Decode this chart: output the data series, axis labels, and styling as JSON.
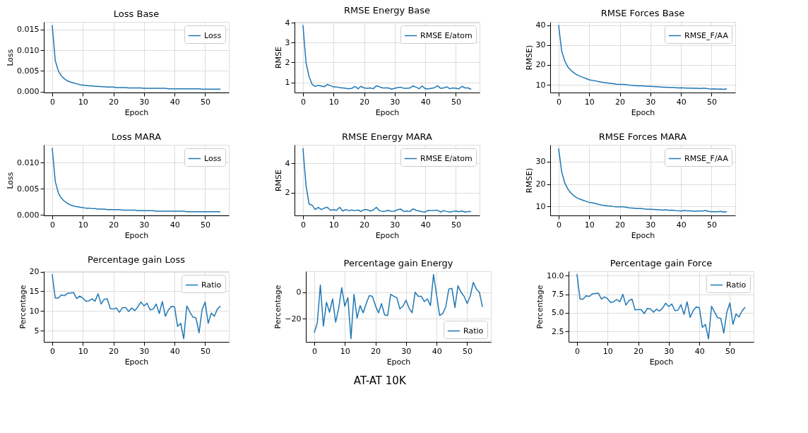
{
  "chart_data": [
    {
      "type": "line",
      "title": "Loss Base",
      "xlabel": "Epoch",
      "ylabel": "Loss",
      "x": [
        0,
        1,
        2,
        3,
        4,
        5,
        6,
        7,
        8,
        9,
        10,
        11,
        12,
        13,
        14,
        15,
        16,
        17,
        18,
        19,
        20,
        21,
        22,
        23,
        24,
        25,
        26,
        27,
        28,
        29,
        30,
        31,
        32,
        33,
        34,
        35,
        36,
        37,
        38,
        39,
        40,
        41,
        42,
        43,
        44,
        45,
        46,
        47,
        48,
        49,
        50,
        51,
        52,
        53,
        54,
        55
      ],
      "xlim": [
        -2.75,
        57.75
      ],
      "xticks": [
        0,
        10,
        20,
        30,
        40,
        50
      ],
      "ylim": [
        -0.0002,
        0.0168
      ],
      "yticks": [
        {
          "value": 0,
          "label": "0.000"
        },
        {
          "value": 0.005,
          "label": "0.005"
        },
        {
          "value": 0.01,
          "label": "0.010"
        },
        {
          "value": 0.015,
          "label": "0.015"
        }
      ],
      "grid": true,
      "legend": "top right",
      "series": [
        {
          "name": "Loss",
          "color": "#1f77b4",
          "values": [
            0.016,
            0.0075,
            0.005,
            0.0038,
            0.0031,
            0.0026,
            0.0023,
            0.0021,
            0.0019,
            0.0017,
            0.0016,
            0.0015,
            0.0014,
            0.0014,
            0.0013,
            0.0013,
            0.0012,
            0.0012,
            0.0011,
            0.0011,
            0.0011,
            0.001,
            0.001,
            0.001,
            0.001,
            0.0009,
            0.0009,
            0.0009,
            0.0009,
            0.0009,
            0.0008,
            0.0008,
            0.0008,
            0.0008,
            0.0008,
            0.0008,
            0.0008,
            0.0008,
            0.0007,
            0.0007,
            0.0007,
            0.0007,
            0.0007,
            0.0007,
            0.0007,
            0.0007,
            0.0007,
            0.0007,
            0.0007,
            0.0006,
            0.0006,
            0.0006,
            0.0006,
            0.0006,
            0.0006,
            0.0006
          ]
        }
      ]
    },
    {
      "type": "line",
      "title": "RMSE Energy Base",
      "xlabel": "Epoch",
      "ylabel": "RMSE",
      "x": [
        0,
        1,
        2,
        3,
        4,
        5,
        6,
        7,
        8,
        9,
        10,
        11,
        12,
        13,
        14,
        15,
        16,
        17,
        18,
        19,
        20,
        21,
        22,
        23,
        24,
        25,
        26,
        27,
        28,
        29,
        30,
        31,
        32,
        33,
        34,
        35,
        36,
        37,
        38,
        39,
        40,
        41,
        42,
        43,
        44,
        45,
        46,
        47,
        48,
        49,
        50,
        51,
        52,
        53,
        54,
        55
      ],
      "xlim": [
        -2.75,
        57.75
      ],
      "xticks": [
        0,
        10,
        20,
        30,
        40,
        50
      ],
      "ylim": [
        0.49,
        4.04
      ],
      "yticks": [
        1,
        2,
        3,
        4
      ],
      "grid": true,
      "legend": "top right",
      "series": [
        {
          "name": "RMSE E/atom",
          "color": "#1f77b4",
          "values": [
            3.88,
            2.0,
            1.3,
            0.9,
            0.8,
            0.85,
            0.82,
            0.78,
            0.9,
            0.83,
            0.77,
            0.77,
            0.74,
            0.72,
            0.7,
            0.68,
            0.7,
            0.8,
            0.68,
            0.8,
            0.72,
            0.7,
            0.72,
            0.68,
            0.83,
            0.78,
            0.72,
            0.72,
            0.72,
            0.66,
            0.7,
            0.74,
            0.76,
            0.7,
            0.7,
            0.72,
            0.82,
            0.76,
            0.68,
            0.82,
            0.68,
            0.68,
            0.7,
            0.73,
            0.83,
            0.7,
            0.72,
            0.78,
            0.68,
            0.72,
            0.7,
            0.68,
            0.8,
            0.72,
            0.72,
            0.65
          ]
        }
      ]
    },
    {
      "type": "line",
      "title": "RMSE Forces Base",
      "xlabel": "Epoch",
      "ylabel": "RMSE)",
      "x": [
        0,
        1,
        2,
        3,
        4,
        5,
        6,
        7,
        8,
        9,
        10,
        11,
        12,
        13,
        14,
        15,
        16,
        17,
        18,
        19,
        20,
        21,
        22,
        23,
        24,
        25,
        26,
        27,
        28,
        29,
        30,
        31,
        32,
        33,
        34,
        35,
        36,
        37,
        38,
        39,
        40,
        41,
        42,
        43,
        44,
        45,
        46,
        47,
        48,
        49,
        50,
        51,
        52,
        53,
        54,
        55
      ],
      "xlim": [
        -2.75,
        57.75
      ],
      "xticks": [
        0,
        10,
        20,
        30,
        40,
        50
      ],
      "ylim": [
        6.1,
        41.6
      ],
      "yticks": [
        10,
        20,
        30,
        40
      ],
      "grid": true,
      "legend": "top right",
      "series": [
        {
          "name": "RMSE_F/AA",
          "color": "#1f77b4",
          "values": [
            40,
            27,
            22,
            19,
            17.3,
            16,
            15,
            14.3,
            13.7,
            13.1,
            12.5,
            12.2,
            12,
            11.6,
            11.3,
            11.1,
            10.9,
            10.7,
            10.5,
            10.3,
            10.2,
            10.2,
            10.1,
            9.8,
            9.7,
            9.6,
            9.5,
            9.5,
            9.4,
            9.2,
            9.2,
            9.1,
            9.0,
            8.9,
            8.8,
            8.8,
            8.7,
            8.7,
            8.6,
            8.4,
            8.5,
            8.4,
            8.3,
            8.3,
            8.2,
            8.3,
            8.1,
            8.2,
            8.2,
            8.0,
            7.9,
            8.0,
            7.8,
            7.9,
            7.7,
            8.0
          ]
        }
      ]
    },
    {
      "type": "line",
      "title": "Loss MARA",
      "xlabel": "Epoch",
      "ylabel": "Loss",
      "x": [
        0,
        1,
        2,
        3,
        4,
        5,
        6,
        7,
        8,
        9,
        10,
        11,
        12,
        13,
        14,
        15,
        16,
        17,
        18,
        19,
        20,
        21,
        22,
        23,
        24,
        25,
        26,
        27,
        28,
        29,
        30,
        31,
        32,
        33,
        34,
        35,
        36,
        37,
        38,
        39,
        40,
        41,
        42,
        43,
        44,
        45,
        46,
        47,
        48,
        49,
        50,
        51,
        52,
        53,
        54,
        55
      ],
      "xlim": [
        -2.75,
        57.75
      ],
      "xticks": [
        0,
        10,
        20,
        30,
        40,
        50
      ],
      "ylim": [
        -0.0001,
        0.0134
      ],
      "yticks": [
        {
          "value": 0,
          "label": "0.000"
        },
        {
          "value": 0.005,
          "label": "0.005"
        },
        {
          "value": 0.01,
          "label": "0.010"
        }
      ],
      "grid": true,
      "legend": "top right",
      "series": [
        {
          "name": "Loss",
          "color": "#1f77b4",
          "values": [
            0.0128,
            0.0064,
            0.0042,
            0.0032,
            0.0026,
            0.0022,
            0.0019,
            0.0017,
            0.0016,
            0.0015,
            0.0014,
            0.0013,
            0.0013,
            0.0012,
            0.0012,
            0.0011,
            0.0011,
            0.0011,
            0.001,
            0.001,
            0.001,
            0.001,
            0.001,
            0.0009,
            0.0009,
            0.0009,
            0.0009,
            0.0009,
            0.0008,
            0.0008,
            0.0008,
            0.0008,
            0.0008,
            0.0008,
            0.0007,
            0.0007,
            0.0007,
            0.0007,
            0.0007,
            0.0007,
            0.0007,
            0.0007,
            0.0007,
            0.0007,
            0.0006,
            0.0006,
            0.0006,
            0.0006,
            0.0006,
            0.0006,
            0.0006,
            0.0006,
            0.0006,
            0.0006,
            0.0006,
            0.0006
          ]
        }
      ]
    },
    {
      "type": "line",
      "title": "RMSE Energy MARA",
      "xlabel": "Epoch",
      "ylabel": "RMSE",
      "x": [
        0,
        1,
        2,
        3,
        4,
        5,
        6,
        7,
        8,
        9,
        10,
        11,
        12,
        13,
        14,
        15,
        16,
        17,
        18,
        19,
        20,
        21,
        22,
        23,
        24,
        25,
        26,
        27,
        28,
        29,
        30,
        31,
        32,
        33,
        34,
        35,
        36,
        37,
        38,
        39,
        40,
        41,
        42,
        43,
        44,
        45,
        46,
        47,
        48,
        49,
        50,
        51,
        52,
        53,
        54,
        55
      ],
      "xlim": [
        -2.75,
        57.75
      ],
      "xticks": [
        0,
        10,
        20,
        30,
        40,
        50
      ],
      "ylim": [
        0.45,
        5.25
      ],
      "yticks": [
        2,
        4
      ],
      "grid": true,
      "legend": "top right",
      "series": [
        {
          "name": "RMSE E/atom",
          "color": "#1f77b4",
          "values": [
            5.02,
            2.5,
            1.22,
            1.15,
            0.85,
            1.0,
            0.85,
            0.95,
            1.0,
            0.8,
            0.85,
            0.8,
            1.0,
            0.75,
            0.85,
            0.78,
            0.82,
            0.78,
            0.82,
            0.72,
            0.85,
            0.85,
            0.75,
            0.82,
            1.0,
            0.78,
            0.72,
            0.75,
            0.8,
            0.72,
            0.75,
            0.85,
            0.88,
            0.72,
            0.75,
            0.72,
            0.9,
            0.8,
            0.75,
            0.7,
            0.68,
            0.8,
            0.78,
            0.8,
            0.8,
            0.68,
            0.78,
            0.72,
            0.68,
            0.72,
            0.75,
            0.7,
            0.75,
            0.68,
            0.72,
            0.72
          ]
        }
      ]
    },
    {
      "type": "line",
      "title": "RMSE Forces MARA",
      "xlabel": "Epoch",
      "ylabel": "RMSE)",
      "x": [
        0,
        1,
        2,
        3,
        4,
        5,
        6,
        7,
        8,
        9,
        10,
        11,
        12,
        13,
        14,
        15,
        16,
        17,
        18,
        19,
        20,
        21,
        22,
        23,
        24,
        25,
        26,
        27,
        28,
        29,
        30,
        31,
        32,
        33,
        34,
        35,
        36,
        37,
        38,
        39,
        40,
        41,
        42,
        43,
        44,
        45,
        46,
        47,
        48,
        49,
        50,
        51,
        52,
        53,
        54,
        55
      ],
      "xlim": [
        -2.75,
        57.75
      ],
      "xticks": [
        0,
        10,
        20,
        30,
        40,
        50
      ],
      "ylim": [
        5.9,
        37.6
      ],
      "yticks": [
        10,
        20,
        30
      ],
      "grid": true,
      "legend": "top right",
      "series": [
        {
          "name": "RMSE_F/AA",
          "color": "#1f77b4",
          "values": [
            36,
            25.5,
            20.5,
            17.8,
            16,
            14.7,
            13.8,
            13.2,
            12.7,
            12.2,
            11.8,
            11.6,
            11.3,
            10.9,
            10.6,
            10.4,
            10.2,
            10.1,
            9.9,
            9.8,
            9.8,
            9.8,
            9.6,
            9.3,
            9.2,
            9.1,
            9.0,
            9.0,
            8.8,
            8.7,
            8.7,
            8.6,
            8.5,
            8.4,
            8.3,
            8.4,
            8.2,
            8.3,
            8.1,
            8.0,
            7.9,
            8.1,
            8.0,
            8.0,
            7.8,
            7.8,
            7.9,
            7.9,
            8.1,
            7.7,
            7.6,
            7.6,
            7.6,
            7.7,
            7.4,
            7.6
          ]
        }
      ]
    },
    {
      "type": "line",
      "title": "Percentage gain Loss",
      "xlabel": "Epoch",
      "ylabel": "Percentage",
      "x": [
        0,
        1,
        2,
        3,
        4,
        5,
        6,
        7,
        8,
        9,
        10,
        11,
        12,
        13,
        14,
        15,
        16,
        17,
        18,
        19,
        20,
        21,
        22,
        23,
        24,
        25,
        26,
        27,
        28,
        29,
        30,
        31,
        32,
        33,
        34,
        35,
        36,
        37,
        38,
        39,
        40,
        41,
        42,
        43,
        44,
        45,
        46,
        47,
        48,
        49,
        50,
        51,
        52,
        53,
        54,
        55
      ],
      "xlim": [
        -2.75,
        57.75
      ],
      "xticks": [
        0,
        10,
        20,
        30,
        40,
        50
      ],
      "ylim": [
        2.2,
        20.1
      ],
      "yticks": [
        5,
        10,
        15,
        20
      ],
      "grid": true,
      "legend": "top right",
      "series": [
        {
          "name": "Ratio",
          "color": "#1f77b4",
          "values": [
            19.3,
            13.3,
            13.3,
            14.1,
            13.9,
            14.5,
            14.6,
            14.7,
            13.2,
            13.8,
            13.3,
            12.5,
            12.6,
            13.1,
            12.5,
            14.4,
            11.8,
            13.0,
            13.1,
            10.6,
            10.5,
            10.8,
            9.7,
            10.9,
            10.9,
            9.9,
            10.8,
            10.1,
            11.1,
            12.3,
            11.3,
            12.0,
            10.3,
            10.5,
            11.8,
            9.4,
            12.4,
            8.7,
            10.3,
            11.2,
            11.1,
            6.1,
            6.9,
            3.0,
            11.3,
            9.8,
            8.5,
            8.3,
            4.5,
            10.3,
            12.3,
            6.9,
            9.5,
            8.7,
            10.5,
            11.3
          ]
        }
      ]
    },
    {
      "type": "line",
      "title": "Percentage gain Energy",
      "xlabel": "Epoch",
      "ylabel": "Percentage",
      "x": [
        0,
        1,
        2,
        3,
        4,
        5,
        6,
        7,
        8,
        9,
        10,
        11,
        12,
        13,
        14,
        15,
        16,
        17,
        18,
        19,
        20,
        21,
        22,
        23,
        24,
        25,
        26,
        27,
        28,
        29,
        30,
        31,
        32,
        33,
        34,
        35,
        36,
        37,
        38,
        39,
        40,
        41,
        42,
        43,
        44,
        45,
        46,
        47,
        48,
        49,
        50,
        51,
        52,
        53,
        54,
        55
      ],
      "xlim": [
        -2.75,
        57.75
      ],
      "xticks": [
        0,
        10,
        20,
        30,
        40,
        50
      ],
      "ylim": [
        -37.4,
        15.9
      ],
      "yticks": [
        {
          "value": -20,
          "label": "−20"
        },
        0
      ],
      "grid": true,
      "legend": "bottom right",
      "annotations": [
        "AT-AT 10K"
      ],
      "series": [
        {
          "name": "Ratio",
          "color": "#1f77b4",
          "values": [
            -30.5,
            -23,
            5.5,
            -25.5,
            -7.5,
            -15,
            -5,
            -22.5,
            -12,
            3.5,
            -10.5,
            -4,
            -35,
            -1.5,
            -19.5,
            -10,
            -15.5,
            -8.5,
            -2.5,
            -3,
            -10,
            -15.5,
            -8.5,
            -17,
            -17.5,
            -1.5,
            -3,
            -4,
            -12.5,
            -10.5,
            -6,
            -12,
            -15.5,
            0,
            -3,
            -3,
            -7,
            -5,
            -10,
            13.5,
            -2,
            -17.5,
            -16,
            -11,
            2.5,
            3,
            -11.5,
            5,
            0,
            -3,
            -8.5,
            -3,
            7.5,
            2.5,
            0,
            -11
          ]
        }
      ]
    },
    {
      "type": "line",
      "title": "Percentage gain Force",
      "xlabel": "Epoch",
      "ylabel": "Percentage",
      "x": [
        0,
        1,
        2,
        3,
        4,
        5,
        6,
        7,
        8,
        9,
        10,
        11,
        12,
        13,
        14,
        15,
        16,
        17,
        18,
        19,
        20,
        21,
        22,
        23,
        24,
        25,
        26,
        27,
        28,
        29,
        30,
        31,
        32,
        33,
        34,
        35,
        36,
        37,
        38,
        39,
        40,
        41,
        42,
        43,
        44,
        45,
        46,
        47,
        48,
        49,
        50,
        51,
        52,
        53,
        54,
        55
      ],
      "xlim": [
        -2.75,
        57.75
      ],
      "xticks": [
        0,
        10,
        20,
        30,
        40,
        50
      ],
      "ylim": [
        1.1,
        10.6
      ],
      "yticks": [
        2.5,
        {
          "value": 5,
          "label": "5.0"
        },
        7.5,
        {
          "value": 10,
          "label": "10.0"
        }
      ],
      "grid": true,
      "legend": "top right",
      "series": [
        {
          "name": "Ratio",
          "color": "#1f77b4",
          "values": [
            10.2,
            6.85,
            6.85,
            7.3,
            7.2,
            7.55,
            7.6,
            7.65,
            6.85,
            7.15,
            6.9,
            6.4,
            6.5,
            6.8,
            6.5,
            7.5,
            6.05,
            6.65,
            6.85,
            5.4,
            5.45,
            5.45,
            4.9,
            5.6,
            5.55,
            5.1,
            5.5,
            5.25,
            5.65,
            6.3,
            5.85,
            6.2,
            5.3,
            5.35,
            6.1,
            4.8,
            6.5,
            4.4,
            5.3,
            5.8,
            5.7,
            3.05,
            3.45,
            1.5,
            5.9,
            5.1,
            4.35,
            4.25,
            2.3,
            5.1,
            6.35,
            3.45,
            4.85,
            4.45,
            5.3,
            5.75
          ]
        }
      ]
    }
  ]
}
